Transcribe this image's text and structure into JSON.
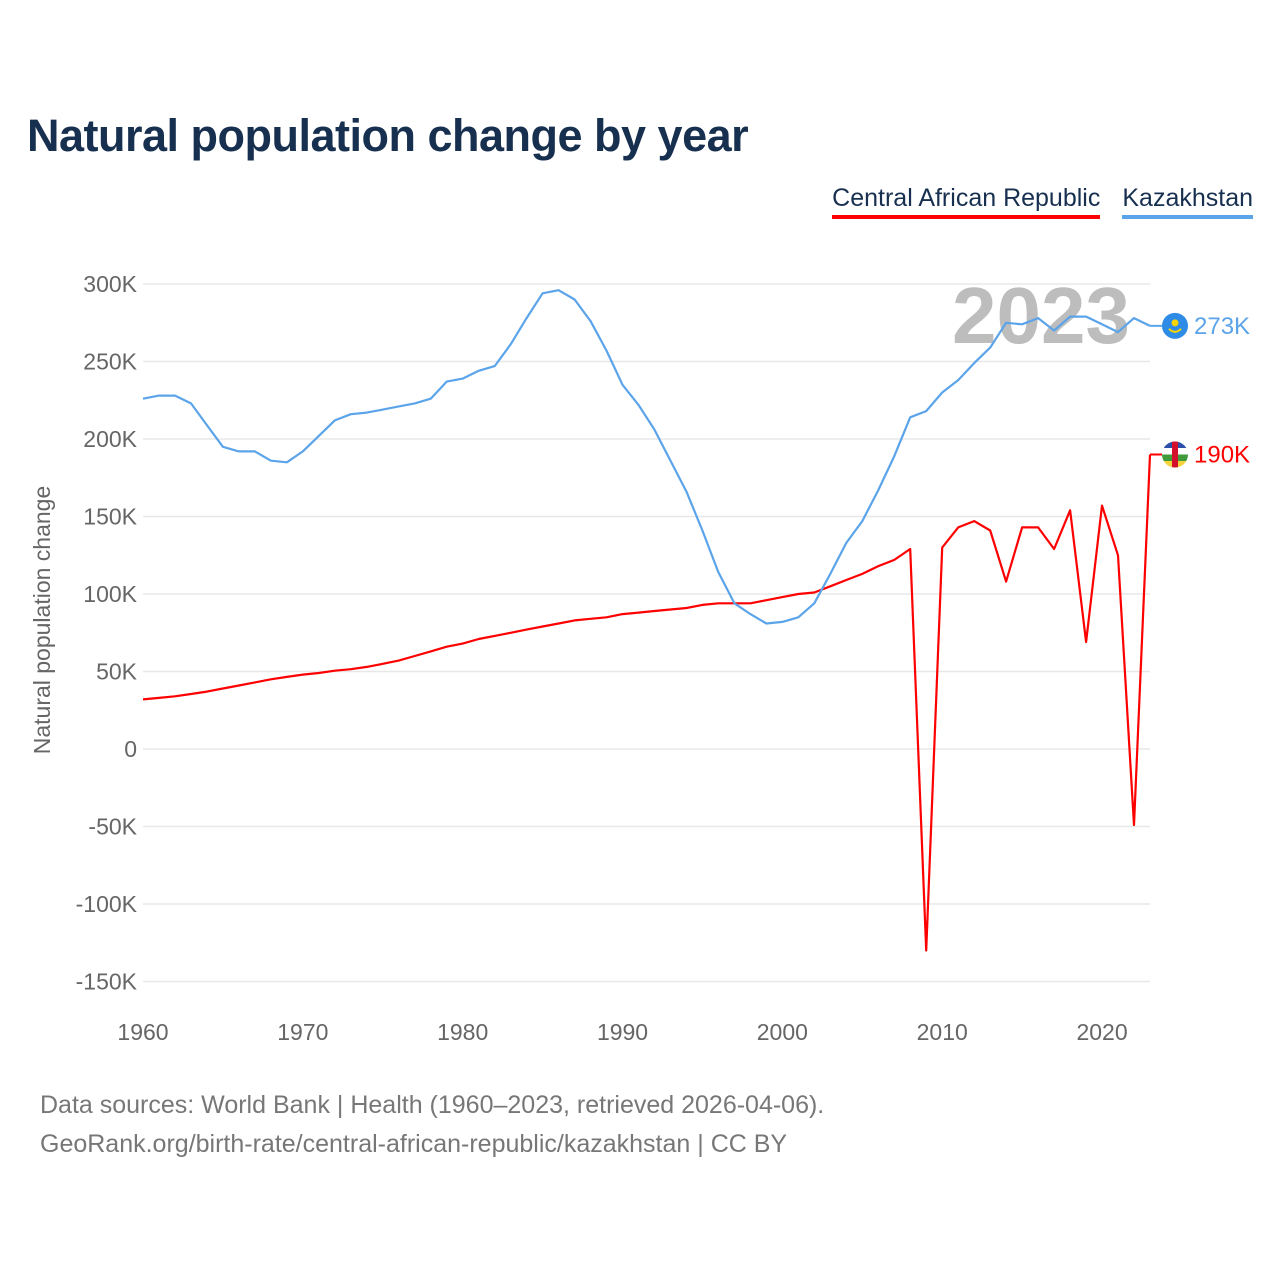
{
  "title": "Natural population change by year",
  "legend": [
    {
      "label": "Central African Republic",
      "color": "#ff0000"
    },
    {
      "label": "Kazakhstan",
      "color": "#5ba4ea"
    }
  ],
  "footer": {
    "line1": "Data sources: World Bank | Health (1960–2023, retrieved 2026-04-06).",
    "line2": "GeoRank.org/birth-rate/central-african-republic/kazakhstan | CC BY"
  },
  "chart_data": {
    "type": "line",
    "title": "Natural population change by year",
    "xlabel": "",
    "ylabel": "Natural population change",
    "year_watermark": "2023",
    "xlim": [
      1960,
      2023
    ],
    "ylim": [
      -150000,
      300000
    ],
    "x_ticks": [
      {
        "v": 1960,
        "label": "1960"
      },
      {
        "v": 1970,
        "label": "1970"
      },
      {
        "v": 1980,
        "label": "1980"
      },
      {
        "v": 1990,
        "label": "1990"
      },
      {
        "v": 2000,
        "label": "2000"
      },
      {
        "v": 2010,
        "label": "2010"
      },
      {
        "v": 2020,
        "label": "2020"
      }
    ],
    "y_ticks": [
      {
        "v": 300,
        "label": "300K"
      },
      {
        "v": 250,
        "label": "250K"
      },
      {
        "v": 200,
        "label": "200K"
      },
      {
        "v": 150,
        "label": "150K"
      },
      {
        "v": 100,
        "label": "100K"
      },
      {
        "v": 50,
        "label": "50K"
      },
      {
        "v": 0,
        "label": "0"
      },
      {
        "v": -50,
        "label": "-50K"
      },
      {
        "v": -100,
        "label": "-100K"
      },
      {
        "v": -150,
        "label": "-150K"
      }
    ],
    "units": "thousands",
    "x_start": 1960,
    "series": [
      {
        "name": "Central African Republic",
        "color": "#ff0000",
        "end_label": "190K",
        "values": [
          32,
          33,
          34,
          35.5,
          37,
          39,
          41,
          43,
          45,
          46.5,
          48,
          49,
          50.5,
          51.5,
          53,
          55,
          57,
          60,
          63,
          66,
          68,
          71,
          73,
          75,
          77,
          79,
          81,
          83,
          84,
          85,
          87,
          88,
          89,
          90,
          91,
          93,
          94,
          94,
          94,
          96,
          98,
          100,
          101,
          105,
          109,
          113,
          118,
          122,
          129,
          -130,
          130,
          143,
          147,
          141,
          108,
          143,
          143,
          129,
          154,
          69,
          157,
          125,
          -49,
          190
        ]
      },
      {
        "name": "Kazakhstan",
        "color": "#5ba4ea",
        "end_label": "273K",
        "values": [
          226,
          228,
          228,
          223,
          209,
          195,
          192,
          192,
          186,
          185,
          192,
          202,
          212,
          216,
          217,
          219,
          221,
          223,
          226,
          237,
          239,
          244,
          247,
          261,
          278,
          294,
          296,
          290,
          276,
          257,
          235,
          222,
          206,
          186,
          166,
          141,
          114,
          94,
          87,
          81,
          82,
          85,
          94,
          113,
          133,
          147,
          167,
          189,
          214,
          218,
          230,
          238,
          249,
          259,
          275,
          274,
          278,
          270,
          279,
          279,
          274,
          269,
          278,
          273
        ]
      }
    ]
  }
}
